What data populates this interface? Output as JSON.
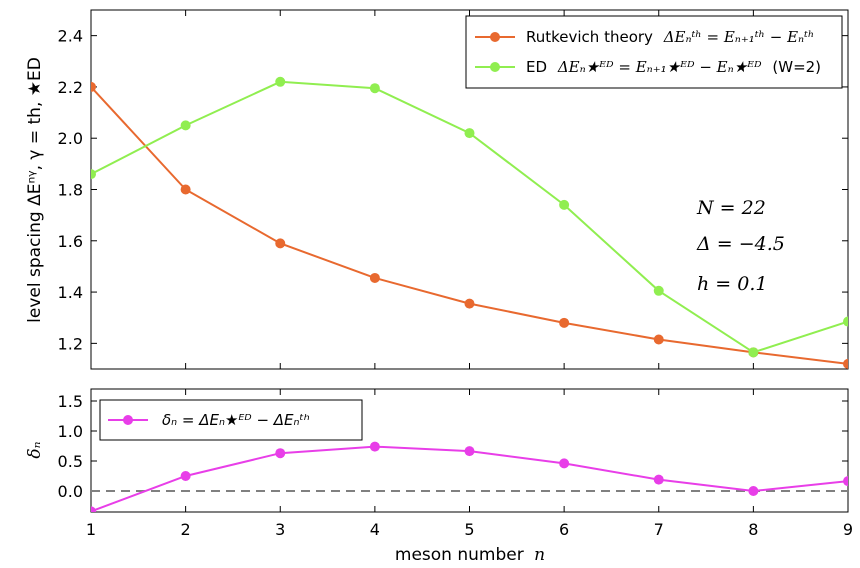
{
  "chart_data": [
    {
      "type": "line",
      "panel": "top",
      "ylabel": "level spacing ΔEⁿᵞ, γ = th, ★ED",
      "xlim": [
        1,
        9
      ],
      "ylim": [
        1.1,
        2.5
      ],
      "yticks": [
        "1.2",
        "1.4",
        "1.6",
        "1.8",
        "2.0",
        "2.2",
        "2.4"
      ],
      "ytick_values": [
        1.2,
        1.4,
        1.6,
        1.8,
        2.0,
        2.2,
        2.4
      ],
      "x": [
        1,
        2,
        3,
        4,
        5,
        6,
        7,
        8,
        9
      ],
      "series": [
        {
          "name": "Rutkevich theory ΔEₙᵗʰ = Eₙ₊₁ᵗʰ − Eₙᵗʰ",
          "label_text": "Rutkevich theory",
          "label_math": "ΔEₙᵗʰ = Eₙ₊₁ᵗʰ − Eₙᵗʰ",
          "color": "#e8692f",
          "values": [
            2.2,
            1.8,
            1.59,
            1.455,
            1.355,
            1.28,
            1.215,
            1.165,
            1.12
          ]
        },
        {
          "name": "ED ΔEₙ★ᴱᴰ = Eₙ₊₁★ᴱᴰ − Eₙ★ᴱᴰ (W=2)",
          "label_text": "ED",
          "label_math": "ΔEₙ★ᴱᴰ = Eₙ₊₁★ᴱᴰ − Eₙ★ᴱᴰ",
          "label_suffix": "(W=2)",
          "color": "#90ee50",
          "values": [
            1.86,
            2.05,
            2.22,
            2.195,
            2.02,
            1.74,
            1.405,
            1.165,
            1.285
          ]
        }
      ],
      "annotations": [
        "N = 22",
        "Δ = −4.5",
        "h = 0.1"
      ],
      "legend": "top-right"
    },
    {
      "type": "line",
      "panel": "bottom",
      "xlabel_text": "meson number",
      "xlabel_var": "n",
      "ylabel": "δₙ",
      "xlim": [
        1,
        9
      ],
      "ylim": [
        -0.35,
        1.7
      ],
      "xticks": [
        "1",
        "2",
        "3",
        "4",
        "5",
        "6",
        "7",
        "8",
        "9"
      ],
      "yticks": [
        "0.0",
        "0.5",
        "1.0",
        "1.5"
      ],
      "ytick_values": [
        0.0,
        0.5,
        1.0,
        1.5
      ],
      "x": [
        1,
        2,
        3,
        4,
        5,
        6,
        7,
        8,
        9
      ],
      "series": [
        {
          "name": "δₙ = ΔEₙ★ᴱᴰ − ΔEₙᵗʰ",
          "color": "#e83ee8",
          "values": [
            -0.34,
            0.25,
            0.63,
            0.74,
            0.665,
            0.46,
            0.19,
            0.0,
            0.165
          ]
        }
      ],
      "reference_line": {
        "y": 0.0,
        "style": "dashed",
        "color": "#808080"
      },
      "legend": "top-left"
    }
  ]
}
